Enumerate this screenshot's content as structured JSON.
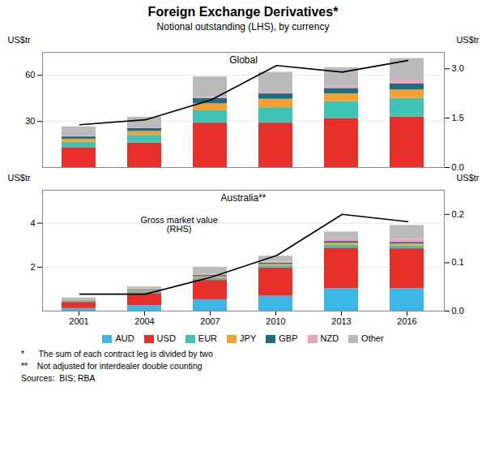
{
  "title": "Foreign Exchange Derivatives*",
  "subtitle": "Notional outstanding (LHS), by currency",
  "annotations": [
    "*      The sum of each contract leg is divided by two",
    "**    Not adjusted for interdealer double counting",
    "Sources:  BIS; RBA"
  ],
  "chart_data": [
    {
      "type": "bar",
      "stacked": true,
      "title": "Global",
      "categories": [
        "2001",
        "2004",
        "2007",
        "2010",
        "2013",
        "2016"
      ],
      "ylabel": "US$tr",
      "y2label": "US$tr",
      "ylim": [
        0,
        75
      ],
      "yticks": [
        30,
        60
      ],
      "y2lim": [
        0,
        3.5
      ],
      "y2ticks": [
        {
          "value": 0,
          "label": "0.0"
        },
        1.5,
        {
          "value": 3,
          "label": "3.0"
        }
      ],
      "grid": true,
      "tick_labels": "y",
      "series": [
        {
          "name": "USD",
          "type": "bar",
          "color": "#E8302A",
          "values": [
            13.0,
            16.0,
            29.0,
            29.0,
            32.0,
            33.0
          ]
        },
        {
          "name": "EUR",
          "type": "bar",
          "color": "#3DC4B4",
          "values": [
            3.5,
            5.0,
            8.0,
            10.0,
            11.0,
            12.0
          ]
        },
        {
          "name": "JPY",
          "type": "bar",
          "color": "#F5A030",
          "values": [
            2.0,
            2.5,
            4.5,
            5.5,
            5.0,
            5.5
          ]
        },
        {
          "name": "GBP",
          "type": "bar",
          "color": "#1E6E82",
          "values": [
            1.5,
            2.0,
            3.5,
            3.5,
            3.5,
            4.0
          ]
        },
        {
          "name": "NZD",
          "type": "bar",
          "color": "#F0A0C0",
          "values": [
            0.3,
            0.3,
            0.8,
            1.0,
            1.5,
            2.0
          ]
        },
        {
          "name": "Other",
          "type": "bar",
          "color": "#BBBBBB",
          "values": [
            6.2,
            7.0,
            13.2,
            13.0,
            12.0,
            14.5
          ]
        },
        {
          "type": "line",
          "axis": "y2",
          "color": "black",
          "values": [
            1.3,
            1.45,
            2.05,
            3.1,
            2.9,
            3.25
          ]
        }
      ]
    },
    {
      "type": "bar",
      "stacked": true,
      "title": "Australia**",
      "categories": [
        "2001",
        "2004",
        "2007",
        "2010",
        "2013",
        "2016"
      ],
      "ylabel": "US$tr",
      "y2label": "US$tr",
      "ylim": [
        0,
        5.5
      ],
      "yticks": [
        2,
        4
      ],
      "y2lim": [
        0,
        0.25
      ],
      "y2ticks": [
        {
          "value": 0,
          "label": "0.0"
        },
        0.1,
        0.2
      ],
      "grid": true,
      "legend": "bottom",
      "annotations": [
        "Gross market value\n(RHS)"
      ],
      "series": [
        {
          "name": "AUD",
          "type": "bar",
          "color": "#3BB8E8",
          "values": [
            0.12,
            0.25,
            0.52,
            0.68,
            1.02,
            1.02
          ]
        },
        {
          "name": "USD",
          "type": "bar",
          "color": "#E8302A",
          "values": [
            0.28,
            0.55,
            0.88,
            1.28,
            1.85,
            1.82
          ]
        },
        {
          "name": "EUR",
          "type": "bar",
          "color": "#3DC4B4",
          "values": [
            0.04,
            0.08,
            0.1,
            0.1,
            0.14,
            0.13
          ]
        },
        {
          "name": "JPY",
          "type": "bar",
          "color": "#F5A030",
          "values": [
            0.03,
            0.06,
            0.07,
            0.07,
            0.09,
            0.09
          ]
        },
        {
          "name": "GBP",
          "type": "bar",
          "color": "#1E6E82",
          "values": [
            0.02,
            0.04,
            0.05,
            0.05,
            0.07,
            0.07
          ]
        },
        {
          "name": "NZD",
          "type": "bar",
          "color": "#F0A0C0",
          "values": [
            0.02,
            0.04,
            0.05,
            0.05,
            0.12,
            0.14
          ]
        },
        {
          "name": "Other",
          "type": "bar",
          "color": "#BBBBBB",
          "values": [
            0.09,
            0.08,
            0.33,
            0.27,
            0.31,
            0.63
          ]
        },
        {
          "type": "line",
          "axis": "y2",
          "color": "black",
          "values": [
            0.035,
            0.035,
            0.07,
            0.115,
            0.2,
            0.185
          ]
        }
      ]
    }
  ]
}
